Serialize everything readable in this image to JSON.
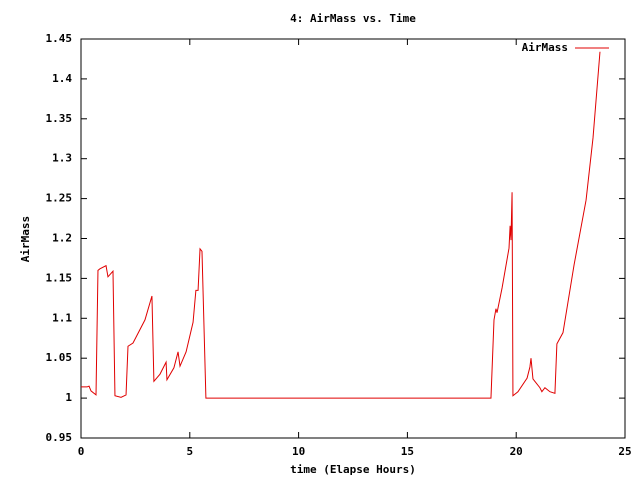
{
  "chart_data": {
    "type": "line",
    "title": "4: AirMass vs. Time",
    "xlabel": "time (Elapse Hours)",
    "ylabel": "AirMass",
    "xlim": [
      0,
      25
    ],
    "xticks": [
      0,
      5,
      10,
      15,
      20,
      25
    ],
    "ylim": [
      0.95,
      1.45
    ],
    "yticks": [
      0.95,
      1,
      1.05,
      1.1,
      1.15,
      1.2,
      1.25,
      1.3,
      1.35,
      1.4,
      1.45
    ],
    "legend": "top-right",
    "series": [
      {
        "name": "AirMass",
        "color": "#e00000",
        "x": [
          0,
          0.28,
          0.37,
          0.46,
          0.69,
          0.78,
          0.87,
          1.15,
          1.24,
          1.47,
          1.56,
          1.84,
          2.07,
          2.16,
          2.39,
          2.94,
          3.26,
          3.35,
          3.63,
          3.91,
          3.95,
          4.27,
          4.46,
          4.55,
          4.83,
          5.15,
          5.28,
          5.38,
          5.47,
          5.56,
          5.74,
          18.84,
          18.98,
          19.07,
          19.12,
          19.35,
          19.67,
          19.72,
          19.76,
          19.81,
          19.85,
          20.08,
          20.5,
          20.63,
          20.68,
          20.77,
          21.09,
          21.18,
          21.32,
          21.55,
          21.78,
          21.87,
          22.15,
          22.66,
          23.21,
          23.53,
          23.85
        ],
        "values": [
          1.014,
          1.014,
          1.015,
          1.009,
          1.004,
          1.16,
          1.162,
          1.166,
          1.152,
          1.159,
          1.003,
          1.001,
          1.004,
          1.065,
          1.069,
          1.098,
          1.128,
          1.021,
          1.03,
          1.045,
          1.023,
          1.038,
          1.058,
          1.04,
          1.058,
          1.095,
          1.135,
          1.135,
          1.187,
          1.184,
          1.0,
          1.0,
          1.098,
          1.112,
          1.107,
          1.138,
          1.188,
          1.216,
          1.198,
          1.258,
          1.003,
          1.008,
          1.025,
          1.039,
          1.05,
          1.024,
          1.013,
          1.008,
          1.013,
          1.008,
          1.006,
          1.068,
          1.082,
          1.167,
          1.248,
          1.326,
          1.434
        ]
      }
    ]
  }
}
